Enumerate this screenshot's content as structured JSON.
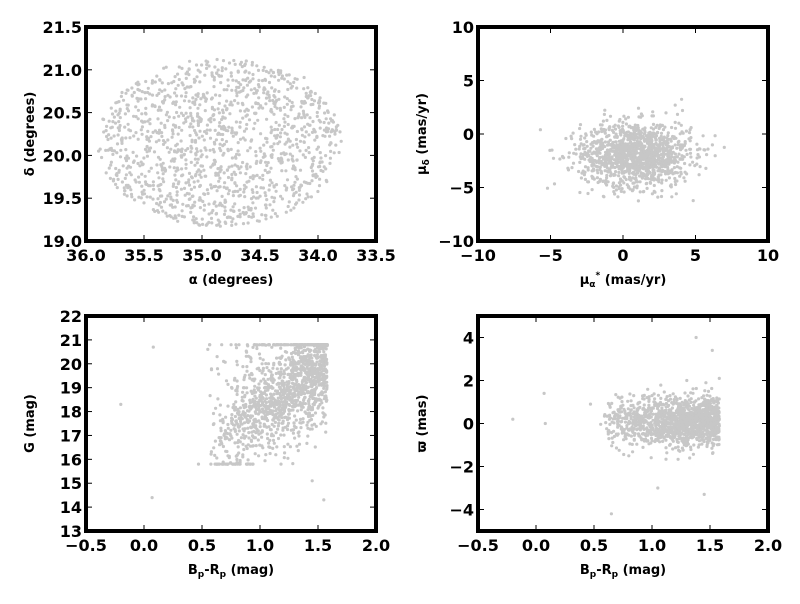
{
  "colors": {
    "points": "#c7c7c7",
    "frame": "#000000",
    "background": "#ffffff"
  },
  "chart_data": [
    {
      "type": "scatter",
      "xlabel": "α (degrees)",
      "ylabel": "δ (degrees)",
      "xlim": [
        36.0,
        33.5
      ],
      "ylim": [
        19.0,
        21.5
      ],
      "xticks": [
        "36.0",
        "35.5",
        "35.0",
        "34.5",
        "34.0",
        "33.5"
      ],
      "yticks": [
        "19.0",
        "19.5",
        "20.0",
        "20.5",
        "21.0",
        "21.5"
      ],
      "point_cloud": {
        "distribution": "uniform-ellipse",
        "x_center": 34.85,
        "y_center": 20.15,
        "x_radius": 1.05,
        "y_radius": 0.98,
        "n": 1300
      },
      "sample_points": [
        [
          35.73,
          20.62
        ],
        [
          35.52,
          19.78
        ],
        [
          35.21,
          20.95
        ],
        [
          34.98,
          20.18
        ],
        [
          34.73,
          19.35
        ],
        [
          34.52,
          20.41
        ],
        [
          34.26,
          20.77
        ],
        [
          34.05,
          19.88
        ],
        [
          33.86,
          20.03
        ],
        [
          33.99,
          20.41
        ],
        [
          34.38,
          19.46
        ],
        [
          35.11,
          19.55
        ],
        [
          35.44,
          20.22
        ],
        [
          34.87,
          21.12
        ],
        [
          35.69,
          20.14
        ],
        [
          34.12,
          20.91
        ],
        [
          35.05,
          19.26
        ],
        [
          34.69,
          20.61
        ],
        [
          35.37,
          19.42
        ],
        [
          34.21,
          19.61
        ]
      ]
    },
    {
      "type": "scatter",
      "xlabel": "μα* (mas/yr)",
      "ylabel": "μδ (mas/yr)",
      "xlim": [
        -10,
        10
      ],
      "ylim": [
        -10,
        10
      ],
      "xticks": [
        "−10",
        "−5",
        "0",
        "5",
        "10"
      ],
      "yticks": [
        "−10",
        "−5",
        "0",
        "5",
        "10"
      ],
      "point_cloud": {
        "distribution": "gaussian",
        "x_center": 0.9,
        "y_center": -1.9,
        "x_sigma": 1.9,
        "y_sigma": 1.5,
        "n": 1300
      },
      "sample_points": [
        [
          -5.7,
          0.4
        ],
        [
          -4.9,
          -1.5
        ],
        [
          -3.8,
          -3.2
        ],
        [
          -2.1,
          -0.8
        ],
        [
          -1.2,
          -4.6
        ],
        [
          0.0,
          -2.0
        ],
        [
          0.6,
          -1.3
        ],
        [
          1.4,
          -5.4
        ],
        [
          2.1,
          0.9
        ],
        [
          2.9,
          -2.6
        ],
        [
          3.6,
          2.7
        ],
        [
          4.1,
          2.2
        ],
        [
          5.3,
          -1.4
        ],
        [
          4.7,
          0.6
        ],
        [
          -0.7,
          -3.1
        ],
        [
          1.1,
          1.6
        ],
        [
          -2.9,
          -2.3
        ],
        [
          3.2,
          -4.1
        ],
        [
          0.3,
          -0.2
        ],
        [
          1.8,
          -2.9
        ]
      ]
    },
    {
      "type": "scatter",
      "xlabel": "Bp-Rp  (mag)",
      "ylabel": "G (mag)",
      "xlim": [
        -0.5,
        2.0
      ],
      "ylim": [
        13,
        22
      ],
      "xticks": [
        "−0.5",
        "0.0",
        "0.5",
        "1.0",
        "1.5",
        "2.0"
      ],
      "yticks": [
        "13",
        "14",
        "15",
        "16",
        "17",
        "18",
        "19",
        "20",
        "21",
        "22"
      ],
      "point_cloud": {
        "distribution": "cmd-sequence",
        "color_range": [
          0.55,
          1.58
        ],
        "g_range": [
          15.8,
          20.8
        ],
        "n": 1400
      },
      "sample_points": [
        [
          -0.2,
          18.3
        ],
        [
          0.07,
          14.4
        ],
        [
          0.08,
          20.7
        ],
        [
          0.47,
          15.8
        ],
        [
          0.55,
          20.6
        ],
        [
          0.63,
          20.3
        ],
        [
          0.8,
          20.1
        ],
        [
          0.95,
          18.3
        ],
        [
          1.02,
          17.2
        ],
        [
          1.1,
          19.5
        ],
        [
          1.18,
          18.0
        ],
        [
          1.25,
          19.2
        ],
        [
          1.33,
          20.0
        ],
        [
          1.41,
          19.4
        ],
        [
          1.5,
          19.8
        ],
        [
          1.55,
          20.5
        ],
        [
          1.45,
          15.1
        ],
        [
          1.55,
          14.3
        ],
        [
          1.05,
          16.2
        ],
        [
          1.2,
          17.6
        ]
      ]
    },
    {
      "type": "scatter",
      "xlabel": "Bp-Rp  (mag)",
      "ylabel": "ϖ (mas)",
      "xlim": [
        -0.5,
        2.0
      ],
      "ylim": [
        -5,
        5
      ],
      "xticks": [
        "−0.5",
        "0.0",
        "0.5",
        "1.0",
        "1.5",
        "2.0"
      ],
      "yticks": [
        "−4",
        "−2",
        "0",
        "2",
        "4"
      ],
      "point_cloud": {
        "distribution": "band",
        "color_range": [
          0.55,
          1.58
        ],
        "y_center": 0.1,
        "y_sigma": 0.55,
        "n": 1400
      },
      "sample_points": [
        [
          -0.2,
          0.2
        ],
        [
          0.07,
          1.4
        ],
        [
          0.08,
          0.0
        ],
        [
          0.47,
          0.9
        ],
        [
          0.65,
          -4.2
        ],
        [
          0.8,
          -1.5
        ],
        [
          0.95,
          0.6
        ],
        [
          1.05,
          -3.0
        ],
        [
          1.12,
          0.3
        ],
        [
          1.2,
          -0.5
        ],
        [
          1.3,
          2.0
        ],
        [
          1.38,
          4.0
        ],
        [
          1.45,
          -3.3
        ],
        [
          1.52,
          3.4
        ],
        [
          1.58,
          2.1
        ],
        [
          1.0,
          1.3
        ],
        [
          1.25,
          0.1
        ],
        [
          1.4,
          -1.1
        ],
        [
          0.9,
          -0.3
        ],
        [
          1.55,
          0.4
        ]
      ]
    }
  ]
}
